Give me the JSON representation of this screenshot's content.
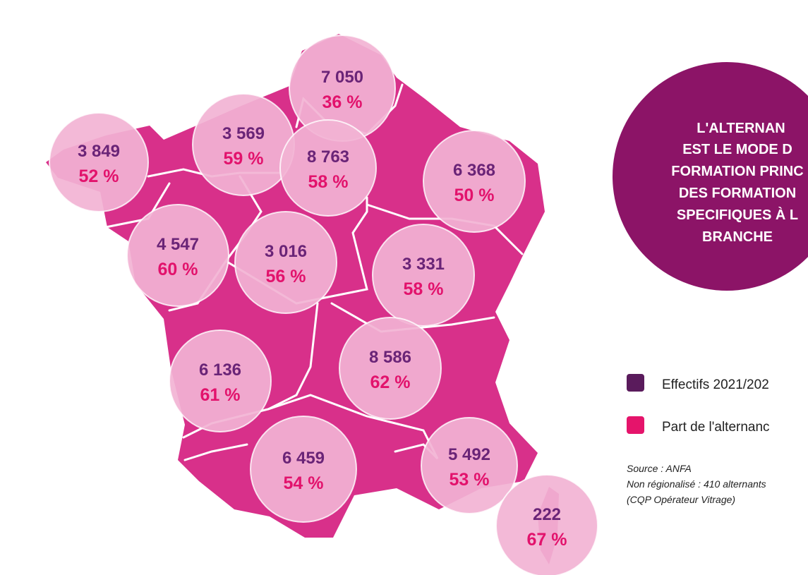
{
  "regions": [
    {
      "count": "3 849",
      "share": "52 %"
    },
    {
      "count": "3 569",
      "share": "59 %"
    },
    {
      "count": "7 050",
      "share": "36 %"
    },
    {
      "count": "8 763",
      "share": "58 %"
    },
    {
      "count": "6 368",
      "share": "50 %"
    },
    {
      "count": "4 547",
      "share": "60 %"
    },
    {
      "count": "3 016",
      "share": "56 %"
    },
    {
      "count": "3 331",
      "share": "58 %"
    },
    {
      "count": "6 136",
      "share": "61 %"
    },
    {
      "count": "8 586",
      "share": "62 %"
    },
    {
      "count": "6 459",
      "share": "54 %"
    },
    {
      "count": "5 492",
      "share": "53 %"
    },
    {
      "count": "222",
      "share": "67 %"
    }
  ],
  "headline": {
    "lines": [
      "L'ALTERNAN",
      "EST LE MODE D",
      "FORMATION PRINC",
      "DES FORMATION",
      "SPECIFIQUES À L",
      "BRANCHE"
    ]
  },
  "legend": [
    "Effectifs 2021/202",
    "Part de l'alternanc"
  ],
  "notes": [
    "Source : ANFA",
    "Non régionalisé : 410 alternants",
    "(CQP Opérateur Vitrage)"
  ]
}
